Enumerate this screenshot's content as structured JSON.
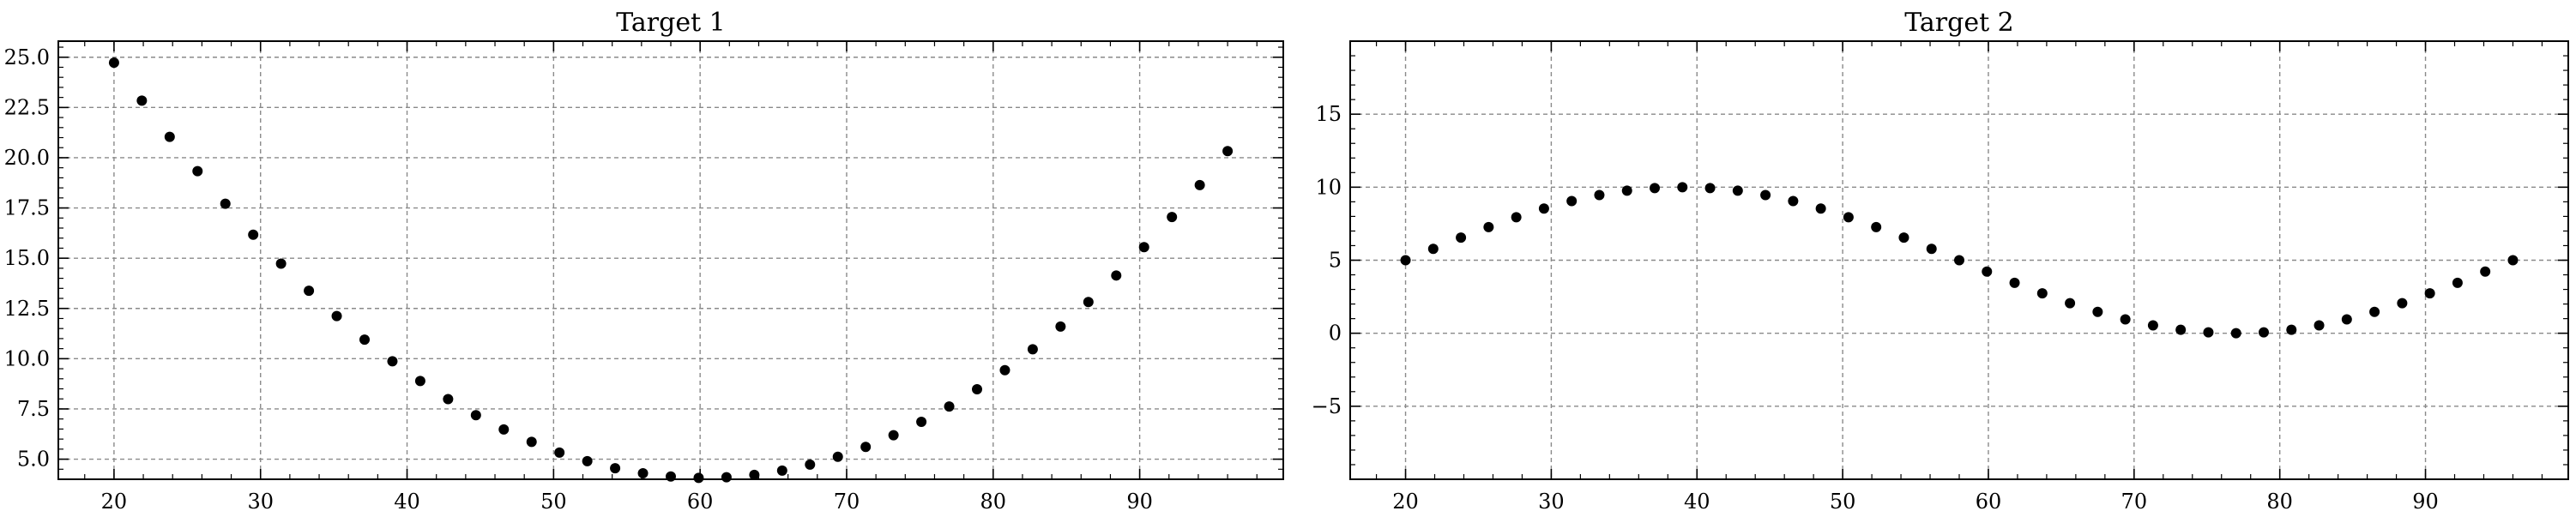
{
  "chart_data": [
    {
      "type": "scatter",
      "title": "Target 1",
      "xlabel": "",
      "ylabel": "",
      "xlim": [
        16.2,
        99.8
      ],
      "ylim": [
        4.0,
        25.8
      ],
      "grid": true,
      "xticks": [
        20,
        30,
        40,
        50,
        60,
        70,
        80,
        90
      ],
      "xtick_labels": [
        "20",
        "30",
        "40",
        "50",
        "60",
        "70",
        "80",
        "90"
      ],
      "yticks": [
        5,
        7.5,
        10,
        12.5,
        15,
        17.5,
        20,
        22.5,
        25
      ],
      "ytick_labels": [
        "5.0",
        "7.5",
        "10.0",
        "12.5",
        "15.0",
        "17.5",
        "20.0",
        "22.5",
        "25.0"
      ],
      "series": [
        {
          "name": "target_1",
          "x": [
            20.0,
            21.9,
            23.8,
            25.7,
            27.6,
            29.5,
            31.4,
            33.3,
            35.2,
            37.1,
            39.0,
            40.9,
            42.8,
            44.7,
            46.6,
            48.5,
            50.4,
            52.3,
            54.2,
            56.1,
            58.0,
            59.9,
            61.8,
            63.7,
            65.6,
            67.5,
            69.4,
            71.3,
            73.2,
            75.1,
            77.0,
            78.9,
            80.8,
            82.7,
            84.6,
            86.5,
            88.4,
            90.3,
            92.2,
            94.1,
            96.0
          ],
          "y": [
            24.73,
            22.84,
            21.04,
            19.33,
            17.71,
            16.17,
            14.73,
            13.38,
            12.12,
            10.95,
            9.87,
            8.89,
            7.99,
            7.19,
            6.48,
            5.86,
            5.33,
            4.9,
            4.55,
            4.3,
            4.14,
            4.07,
            4.1,
            4.22,
            4.43,
            4.73,
            5.12,
            5.61,
            6.19,
            6.86,
            7.62,
            8.48,
            9.43,
            10.47,
            11.6,
            12.82,
            14.14,
            15.55,
            17.05,
            18.64,
            20.33
          ]
        }
      ]
    },
    {
      "type": "scatter",
      "title": "Target 2",
      "xlabel": "",
      "ylabel": "",
      "xlim": [
        16.2,
        99.8
      ],
      "ylim": [
        -10,
        20
      ],
      "grid": true,
      "xticks": [
        20,
        30,
        40,
        50,
        60,
        70,
        80,
        90
      ],
      "xtick_labels": [
        "20",
        "30",
        "40",
        "50",
        "60",
        "70",
        "80",
        "90"
      ],
      "yticks": [
        -5,
        0,
        5,
        10,
        15
      ],
      "ytick_labels": [
        "−5",
        "0",
        "5",
        "10",
        "15"
      ],
      "series": [
        {
          "name": "target_2",
          "x": [
            20.0,
            21.9,
            23.8,
            25.7,
            27.6,
            29.5,
            31.4,
            33.3,
            35.2,
            37.1,
            39.0,
            40.9,
            42.8,
            44.7,
            46.6,
            48.5,
            50.4,
            52.3,
            54.2,
            56.1,
            58.0,
            59.9,
            61.8,
            63.7,
            65.6,
            67.5,
            69.4,
            71.3,
            73.2,
            75.1,
            77.0,
            78.9,
            80.8,
            82.7,
            84.6,
            86.5,
            88.4,
            90.3,
            92.2,
            94.1,
            96.0
          ],
          "y": [
            5.0,
            5.78,
            6.55,
            7.27,
            7.94,
            8.54,
            9.05,
            9.46,
            9.76,
            9.94,
            10.0,
            9.94,
            9.76,
            9.46,
            9.05,
            8.54,
            7.94,
            7.27,
            6.55,
            5.78,
            5.0,
            4.22,
            3.45,
            2.73,
            2.06,
            1.46,
            0.95,
            0.54,
            0.24,
            0.06,
            0.0,
            0.06,
            0.24,
            0.54,
            0.95,
            1.46,
            2.06,
            2.73,
            3.45,
            4.22,
            5.0
          ]
        }
      ]
    }
  ]
}
